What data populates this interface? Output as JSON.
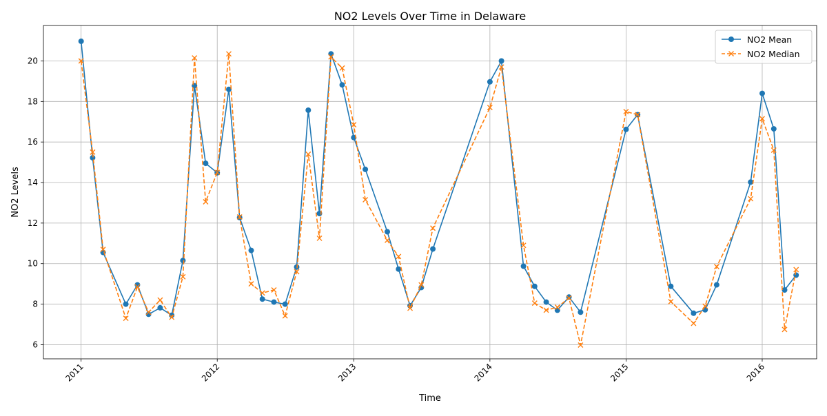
{
  "chart_data": {
    "type": "line",
    "title": "NO2 Levels Over Time in Delaware",
    "xlabel": "Time",
    "ylabel": "NO2 Levels",
    "xlim": [
      "2010-09-22",
      "2016-05-26"
    ],
    "ylim": [
      5.3,
      21.75
    ],
    "x_ticks": [
      "2011",
      "2012",
      "2013",
      "2014",
      "2015",
      "2016"
    ],
    "x_tick_dates": [
      "2011-01-01",
      "2012-01-01",
      "2013-01-01",
      "2014-01-01",
      "2015-01-01",
      "2016-01-01"
    ],
    "y_ticks": [
      6,
      8,
      10,
      12,
      14,
      16,
      18,
      20
    ],
    "grid": true,
    "legend": {
      "placement": "top-right",
      "entries": [
        "NO2 Mean",
        "NO2 Median"
      ]
    },
    "dates": [
      "2011-01-01",
      "2011-02-01",
      "2011-03-01",
      "2011-05-01",
      "2011-06-01",
      "2011-07-01",
      "2011-08-01",
      "2011-09-01",
      "2011-10-01",
      "2011-11-01",
      "2011-12-01",
      "2012-01-01",
      "2012-02-01",
      "2012-03-01",
      "2012-04-01",
      "2012-05-01",
      "2012-06-01",
      "2012-07-01",
      "2012-08-01",
      "2012-09-01",
      "2012-10-01",
      "2012-11-01",
      "2012-12-01",
      "2013-01-01",
      "2013-02-01",
      "2013-04-01",
      "2013-05-01",
      "2013-06-01",
      "2013-07-01",
      "2013-08-01",
      "2014-01-01",
      "2014-02-01",
      "2014-04-01",
      "2014-05-01",
      "2014-06-01",
      "2014-07-01",
      "2014-08-01",
      "2014-09-01",
      "2015-01-01",
      "2015-02-01",
      "2015-05-01",
      "2015-07-01",
      "2015-08-01",
      "2015-09-01",
      "2015-12-01",
      "2016-01-01",
      "2016-02-01",
      "2016-03-01",
      "2016-04-01"
    ],
    "series": [
      {
        "name": "NO2 Mean",
        "color": "#1f77b4",
        "line_style": "solid",
        "marker": "circle",
        "values": [
          20.97,
          15.22,
          10.55,
          8.0,
          8.95,
          7.5,
          7.82,
          7.45,
          10.15,
          18.78,
          14.95,
          14.48,
          18.6,
          12.27,
          10.65,
          8.25,
          8.1,
          8.0,
          9.83,
          17.57,
          12.47,
          20.35,
          18.82,
          16.22,
          14.65,
          11.57,
          9.73,
          7.92,
          8.82,
          10.72,
          18.97,
          20.0,
          9.87,
          8.88,
          8.1,
          7.7,
          8.35,
          7.6,
          16.62,
          17.35,
          8.88,
          7.55,
          7.72,
          8.95,
          14.02,
          18.4,
          16.65,
          8.7,
          9.43
        ]
      },
      {
        "name": "NO2 Median",
        "color": "#ff7f0e",
        "line_style": "dashed",
        "marker": "x",
        "values": [
          20.0,
          15.5,
          10.7,
          7.3,
          8.85,
          7.6,
          8.2,
          7.35,
          9.35,
          20.15,
          13.05,
          14.5,
          20.35,
          12.3,
          9.0,
          8.55,
          8.7,
          7.42,
          9.6,
          15.4,
          11.25,
          20.2,
          19.65,
          16.85,
          13.15,
          11.15,
          10.35,
          7.8,
          8.95,
          11.75,
          17.7,
          19.7,
          10.9,
          8.05,
          7.7,
          7.85,
          8.3,
          5.98,
          17.5,
          17.35,
          8.12,
          7.05,
          7.9,
          9.85,
          13.2,
          17.15,
          15.6,
          6.75,
          9.7
        ]
      }
    ]
  }
}
